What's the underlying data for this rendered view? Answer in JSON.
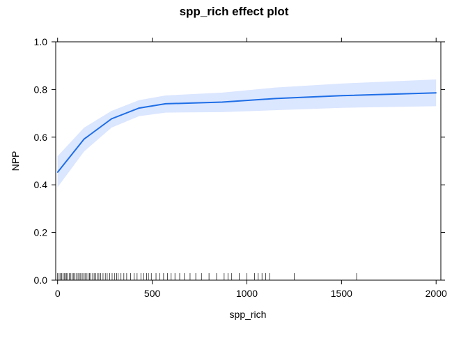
{
  "chart_data": {
    "type": "line",
    "title": "spp_rich effect plot",
    "xlabel": "spp_rich",
    "ylabel": "NPP",
    "xlim": [
      -10,
      2025
    ],
    "ylim": [
      0.0,
      1.0
    ],
    "x_ticks": [
      0,
      500,
      1000,
      1500,
      2000
    ],
    "x_tick_labels": [
      "0",
      "500",
      "1000",
      "1500",
      "2000"
    ],
    "y_ticks": [
      0.0,
      0.2,
      0.4,
      0.6,
      0.8,
      1.0
    ],
    "y_tick_labels": [
      "0.0",
      "0.2",
      "0.4",
      "0.6",
      "0.8",
      "1.0"
    ],
    "grid": false,
    "series": [
      {
        "x": [
          0,
          140,
          285,
          430,
          570,
          870,
          1150,
          1500,
          2000
        ],
        "y": [
          0.453,
          0.592,
          0.677,
          0.722,
          0.74,
          0.747,
          0.762,
          0.774,
          0.786
        ],
        "lower": [
          0.39,
          0.54,
          0.64,
          0.688,
          0.703,
          0.705,
          0.713,
          0.723,
          0.73
        ],
        "upper": [
          0.52,
          0.64,
          0.71,
          0.755,
          0.775,
          0.787,
          0.808,
          0.825,
          0.842
        ]
      }
    ],
    "rug_x": [
      0,
      8,
      15,
      22,
      28,
      35,
      42,
      48,
      55,
      62,
      70,
      78,
      85,
      92,
      100,
      108,
      115,
      122,
      130,
      138,
      145,
      152,
      160,
      168,
      176,
      185,
      193,
      202,
      210,
      218,
      228,
      240,
      252,
      262,
      275,
      288,
      300,
      312,
      320,
      335,
      350,
      365,
      385,
      405,
      420,
      440,
      455,
      470,
      480,
      495,
      520,
      540,
      560,
      580,
      600,
      620,
      645,
      670,
      700,
      730,
      760,
      800,
      840,
      880,
      900,
      920,
      960,
      1000,
      1040,
      1060,
      1080,
      1100,
      1120,
      1250,
      1580
    ],
    "colors": {
      "line": "#1e6ee6",
      "band": "#dbe6ff",
      "axis": "#000000"
    }
  }
}
